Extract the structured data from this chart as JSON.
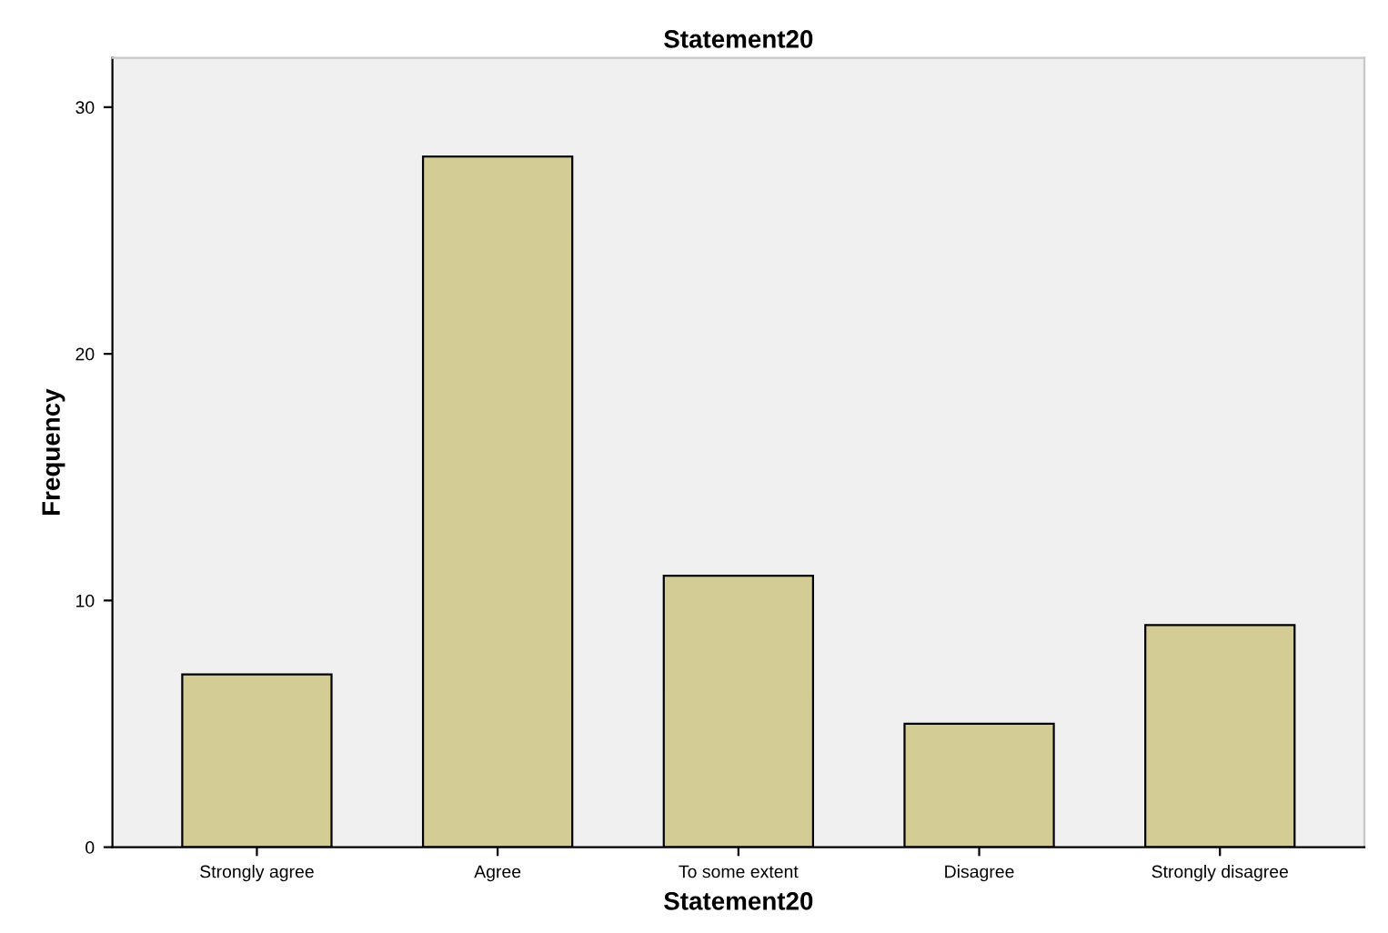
{
  "chart_data": {
    "type": "bar",
    "title": "Statement20",
    "xlabel": "Statement20",
    "ylabel": "Frequency",
    "categories": [
      "Strongly agree",
      "Agree",
      "To some extent",
      "Disagree",
      "Strongly disagree"
    ],
    "values": [
      7,
      28,
      11,
      5,
      9
    ],
    "color": "#d3cd95",
    "ylim": [
      0,
      32
    ],
    "yticks": [
      0,
      10,
      20,
      30
    ],
    "grid": false
  }
}
